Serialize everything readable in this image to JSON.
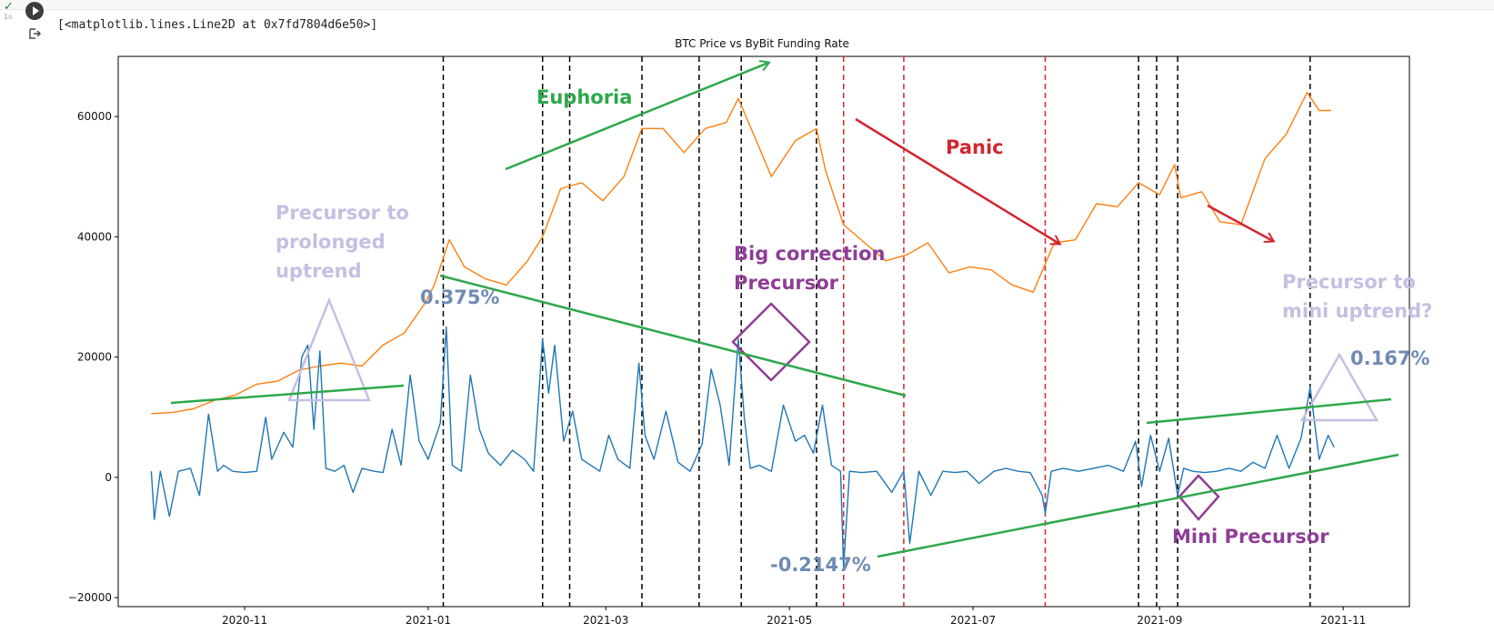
{
  "cell": {
    "status_icon": "check-icon",
    "exec_time": "1s",
    "run_icon": "play-icon",
    "output_icon": "output-icon",
    "output_text": "[<matplotlib.lines.Line2D at 0x7fd7804d6e50>]"
  },
  "chart_data": {
    "type": "line",
    "title": "BTC Price vs ByBit Funding Rate",
    "xlabel": "",
    "ylabel": "",
    "xlim": [
      "2020-09-20",
      "2021-11-23"
    ],
    "ylim": [
      -21500,
      70000
    ],
    "yticks": [
      -20000,
      0,
      20000,
      40000,
      60000
    ],
    "ytick_labels": [
      "−20000",
      "0",
      "20000",
      "40000",
      "60000"
    ],
    "xticks": [
      "2020-11-01",
      "2021-01-01",
      "2021-03-01",
      "2021-05-01",
      "2021-07-01",
      "2021-09-01",
      "2021-11-01"
    ],
    "xtick_labels": [
      "2020-11",
      "2021-01",
      "2021-03",
      "2021-05",
      "2021-07",
      "2021-09",
      "2021-11"
    ],
    "grid": false,
    "series": [
      {
        "color": "#ff7f0e",
        "x": [
          "2020-10-01",
          "2020-10-08",
          "2020-10-15",
          "2020-10-22",
          "2020-10-29",
          "2020-11-05",
          "2020-11-12",
          "2020-11-19",
          "2020-11-26",
          "2020-12-03",
          "2020-12-10",
          "2020-12-17",
          "2020-12-24",
          "2020-12-31",
          "2021-01-03",
          "2021-01-08",
          "2021-01-13",
          "2021-01-20",
          "2021-01-27",
          "2021-02-03",
          "2021-02-08",
          "2021-02-14",
          "2021-02-21",
          "2021-02-28",
          "2021-03-07",
          "2021-03-13",
          "2021-03-20",
          "2021-03-27",
          "2021-04-03",
          "2021-04-10",
          "2021-04-14",
          "2021-04-20",
          "2021-04-25",
          "2021-05-03",
          "2021-05-10",
          "2021-05-13",
          "2021-05-19",
          "2021-05-26",
          "2021-06-02",
          "2021-06-09",
          "2021-06-16",
          "2021-06-23",
          "2021-06-30",
          "2021-07-07",
          "2021-07-14",
          "2021-07-21",
          "2021-07-28",
          "2021-08-04",
          "2021-08-11",
          "2021-08-18",
          "2021-08-25",
          "2021-09-01",
          "2021-09-06",
          "2021-09-08",
          "2021-09-15",
          "2021-09-21",
          "2021-09-28",
          "2021-10-06",
          "2021-10-13",
          "2021-10-20",
          "2021-10-24",
          "2021-10-28"
        ],
        "values": [
          10600,
          10800,
          11400,
          12800,
          13700,
          15500,
          16000,
          17800,
          18500,
          19000,
          18500,
          22000,
          24000,
          29000,
          32000,
          39500,
          35000,
          33000,
          32000,
          36000,
          40000,
          48000,
          49000,
          46000,
          50000,
          58000,
          58000,
          54000,
          58000,
          59000,
          63000,
          56000,
          50000,
          56000,
          58000,
          51000,
          42000,
          39000,
          36000,
          37000,
          39000,
          34000,
          35000,
          34500,
          32000,
          30800,
          39000,
          39500,
          45500,
          45000,
          49000,
          47000,
          52000,
          46500,
          47500,
          42500,
          42000,
          53000,
          57000,
          64000,
          61000,
          61000
        ]
      },
      {
        "color": "#1f77b4",
        "x": [
          "2020-10-01",
          "2020-10-02",
          "2020-10-04",
          "2020-10-07",
          "2020-10-10",
          "2020-10-14",
          "2020-10-17",
          "2020-10-20",
          "2020-10-23",
          "2020-10-25",
          "2020-10-28",
          "2020-11-01",
          "2020-11-05",
          "2020-11-08",
          "2020-11-10",
          "2020-11-14",
          "2020-11-17",
          "2020-11-20",
          "2020-11-22",
          "2020-11-24",
          "2020-11-26",
          "2020-11-28",
          "2020-12-01",
          "2020-12-04",
          "2020-12-07",
          "2020-12-10",
          "2020-12-14",
          "2020-12-17",
          "2020-12-20",
          "2020-12-23",
          "2020-12-26",
          "2020-12-29",
          "2021-01-01",
          "2021-01-05",
          "2021-01-07",
          "2021-01-09",
          "2021-01-12",
          "2021-01-15",
          "2021-01-18",
          "2021-01-21",
          "2021-01-25",
          "2021-01-29",
          "2021-02-02",
          "2021-02-05",
          "2021-02-08",
          "2021-02-10",
          "2021-02-12",
          "2021-02-15",
          "2021-02-18",
          "2021-02-21",
          "2021-02-24",
          "2021-02-27",
          "2021-03-02",
          "2021-03-05",
          "2021-03-09",
          "2021-03-12",
          "2021-03-14",
          "2021-03-17",
          "2021-03-21",
          "2021-03-25",
          "2021-03-29",
          "2021-04-02",
          "2021-04-05",
          "2021-04-08",
          "2021-04-11",
          "2021-04-14",
          "2021-04-16",
          "2021-04-18",
          "2021-04-21",
          "2021-04-25",
          "2021-04-29",
          "2021-05-03",
          "2021-05-06",
          "2021-05-09",
          "2021-05-12",
          "2021-05-15",
          "2021-05-18",
          "2021-05-19",
          "2021-05-21",
          "2021-05-25",
          "2021-05-30",
          "2021-06-04",
          "2021-06-08",
          "2021-06-10",
          "2021-06-13",
          "2021-06-17",
          "2021-06-21",
          "2021-06-25",
          "2021-06-29",
          "2021-07-03",
          "2021-07-08",
          "2021-07-12",
          "2021-07-16",
          "2021-07-20",
          "2021-07-24",
          "2021-07-25",
          "2021-07-27",
          "2021-07-31",
          "2021-08-05",
          "2021-08-10",
          "2021-08-15",
          "2021-08-20",
          "2021-08-24",
          "2021-08-26",
          "2021-08-29",
          "2021-09-01",
          "2021-09-04",
          "2021-09-07",
          "2021-09-09",
          "2021-09-12",
          "2021-09-16",
          "2021-09-20",
          "2021-09-24",
          "2021-09-28",
          "2021-10-02",
          "2021-10-06",
          "2021-10-10",
          "2021-10-14",
          "2021-10-18",
          "2021-10-21",
          "2021-10-24",
          "2021-10-27",
          "2021-10-29"
        ],
        "values": [
          1000,
          -7000,
          1000,
          -6500,
          1000,
          1500,
          -3000,
          10500,
          1000,
          2000,
          1000,
          800,
          1000,
          10000,
          3000,
          7500,
          5000,
          20000,
          22000,
          8000,
          21000,
          1500,
          1000,
          2000,
          -2500,
          1500,
          1000,
          800,
          8000,
          2000,
          17000,
          6000,
          3000,
          9000,
          25000,
          2000,
          1000,
          17000,
          8000,
          4000,
          2000,
          4500,
          3000,
          1000,
          23000,
          14000,
          22000,
          6000,
          11000,
          3000,
          2000,
          1000,
          7000,
          3000,
          1500,
          19000,
          7000,
          3000,
          11000,
          2500,
          1000,
          5500,
          18000,
          12000,
          2000,
          23000,
          10000,
          1500,
          2000,
          1000,
          12000,
          6000,
          7000,
          4000,
          12000,
          2000,
          1000,
          -15000,
          1000,
          800,
          1000,
          -2500,
          1000,
          -11000,
          1000,
          -3000,
          1000,
          800,
          1000,
          -1000,
          1000,
          1500,
          1000,
          800,
          -3000,
          -6000,
          1000,
          1500,
          1000,
          1500,
          2000,
          1000,
          6000,
          -1500,
          7000,
          1000,
          6500,
          -3000,
          1500,
          1000,
          800,
          1000,
          1500,
          1000,
          2500,
          1500,
          7000,
          1500,
          6500,
          15000,
          3000,
          7000,
          5000
        ]
      }
    ],
    "vlines": [
      {
        "x": "2021-01-06",
        "color": "#000000"
      },
      {
        "x": "2021-02-08",
        "color": "#000000"
      },
      {
        "x": "2021-02-17",
        "color": "#000000"
      },
      {
        "x": "2021-03-13",
        "color": "#000000"
      },
      {
        "x": "2021-04-01",
        "color": "#000000"
      },
      {
        "x": "2021-04-15",
        "color": "#000000"
      },
      {
        "x": "2021-05-10",
        "color": "#000000"
      },
      {
        "x": "2021-05-19",
        "color": "#d62728"
      },
      {
        "x": "2021-06-08",
        "color": "#d62728"
      },
      {
        "x": "2021-07-25",
        "color": "#d62728"
      },
      {
        "x": "2021-08-25",
        "color": "#000000"
      },
      {
        "x": "2021-08-31",
        "color": "#000000"
      },
      {
        "x": "2021-09-07",
        "color": "#000000"
      },
      {
        "x": "2021-10-21",
        "color": "#000000"
      }
    ],
    "annotations": {
      "euphoria": "Euphoria",
      "panic": "Panic",
      "precursor_uptrend": [
        "Precursor to",
        "prolonged",
        "uptrend"
      ],
      "big_correction": [
        "Big correction",
        "Precursor"
      ],
      "mini_precursor": "Mini Precursor",
      "precursor_mini_uptrend": [
        "Precursor to",
        "mini uptrend?"
      ],
      "rate_0375": "0.375%",
      "rate_0167": "0.167%",
      "rate_neg": "-0.2147%"
    },
    "annotation_colors": {
      "euphoria": "#2ea84a",
      "panic": "#d0262f",
      "lavender": "#c5bfe2",
      "purple": "#8e3e95",
      "rate": "#6f8bb3",
      "green_line": "#2ea84a"
    }
  }
}
